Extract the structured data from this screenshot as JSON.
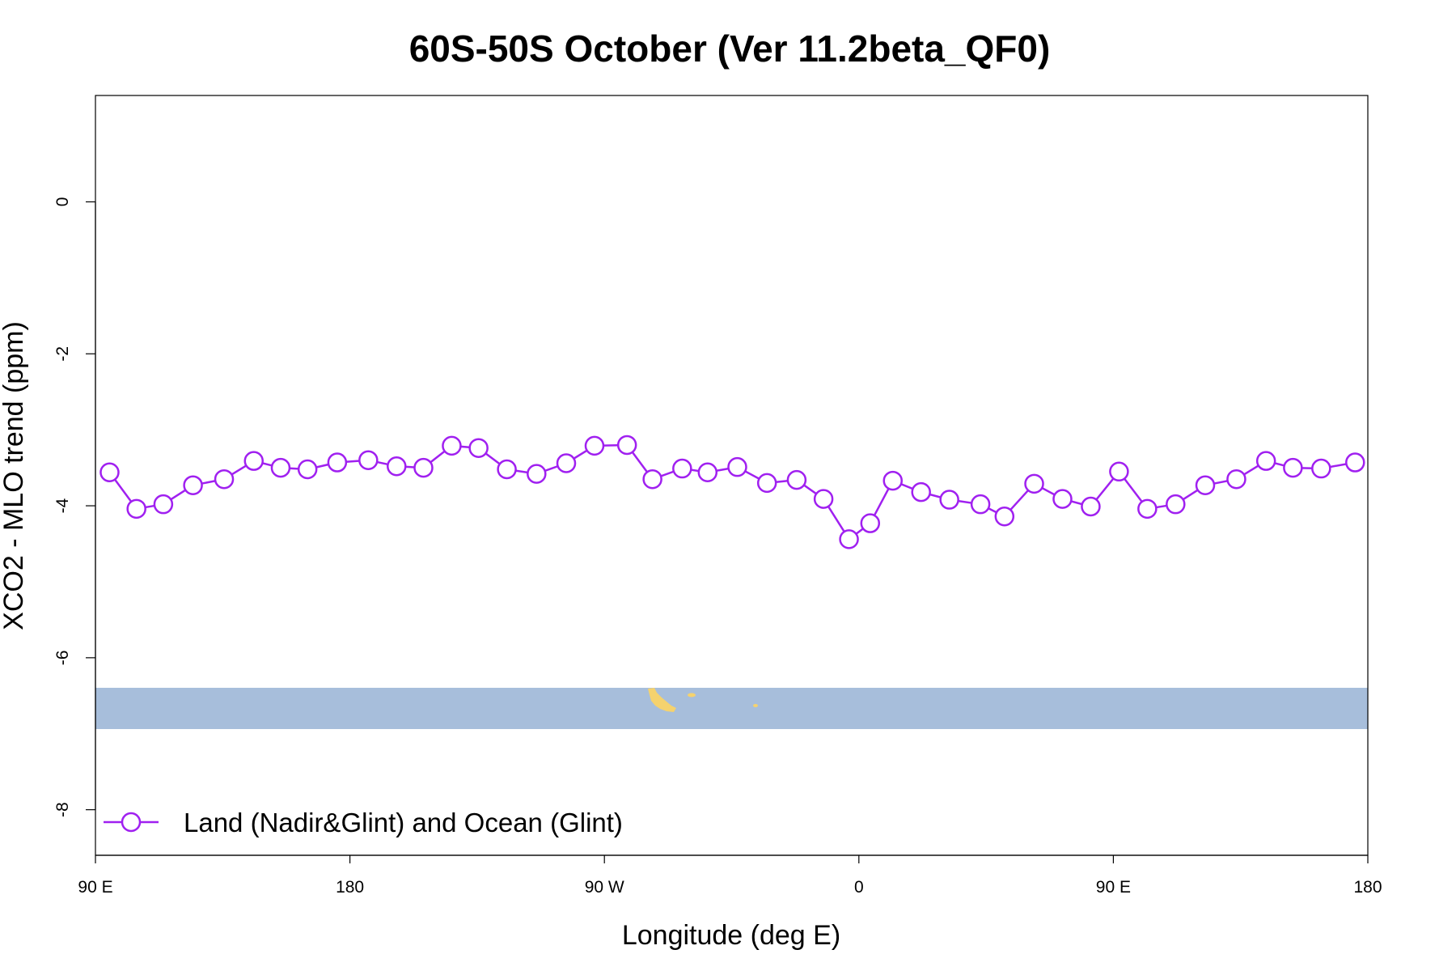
{
  "chart_data": {
    "type": "line",
    "title": "60S-50S October (Ver 11.2beta_QF0)",
    "xlabel": "Longitude (deg E)",
    "ylabel": "XCO2 - MLO trend (ppm)",
    "xlim": [
      90,
      540
    ],
    "ylim": [
      -8.6,
      1.4
    ],
    "x_ticks": [
      {
        "value": 90,
        "label": "90 E"
      },
      {
        "value": 180,
        "label": "180"
      },
      {
        "value": 270,
        "label": "90 W"
      },
      {
        "value": 360,
        "label": "0"
      },
      {
        "value": 450,
        "label": "90 E"
      },
      {
        "value": 540,
        "label": "180"
      }
    ],
    "y_ticks": [
      {
        "value": 0,
        "label": "0"
      },
      {
        "value": -2,
        "label": "-2"
      },
      {
        "value": -4,
        "label": "-4"
      },
      {
        "value": -6,
        "label": "-6"
      },
      {
        "value": -8,
        "label": "-8"
      }
    ],
    "grid": false,
    "legend": {
      "position": "bottom-left",
      "entries": [
        "Land (Nadir&Glint) and Ocean (Glint)"
      ]
    },
    "series": [
      {
        "name": "Land (Nadir&Glint) and Ocean (Glint)",
        "color": "#a020f0",
        "marker": "open-circle",
        "x": [
          95,
          104.5,
          114,
          124.5,
          135.5,
          146,
          155.5,
          165,
          175.5,
          186.5,
          196.5,
          206,
          216,
          225.5,
          235.5,
          246,
          256.5,
          266.5,
          278,
          287,
          297.5,
          306.5,
          317,
          327.5,
          338,
          347.5,
          356.5,
          364,
          372,
          382,
          392,
          403,
          411.5,
          422,
          432,
          442,
          452,
          462,
          472,
          482.5,
          493.5,
          504,
          513.5,
          523.5,
          535.5
        ],
        "y": [
          -3.56,
          -4.04,
          -3.98,
          -3.73,
          -3.65,
          -3.41,
          -3.5,
          -3.52,
          -3.43,
          -3.4,
          -3.48,
          -3.5,
          -3.21,
          -3.24,
          -3.52,
          -3.58,
          -3.44,
          -3.21,
          -3.2,
          -3.65,
          -3.51,
          -3.56,
          -3.49,
          -3.7,
          -3.66,
          -3.91,
          -4.44,
          -4.23,
          -3.67,
          -3.82,
          -3.92,
          -3.98,
          -4.14,
          -3.71,
          -3.91,
          -4.01,
          -3.55,
          -4.04,
          -3.98,
          -3.73,
          -3.65,
          -3.41,
          -3.5,
          -3.51,
          -3.43
        ]
      }
    ],
    "map_strip": {
      "lat_range": "60S-50S",
      "ocean_color": "#a7bedb",
      "land_color": "#f5d26e"
    }
  }
}
